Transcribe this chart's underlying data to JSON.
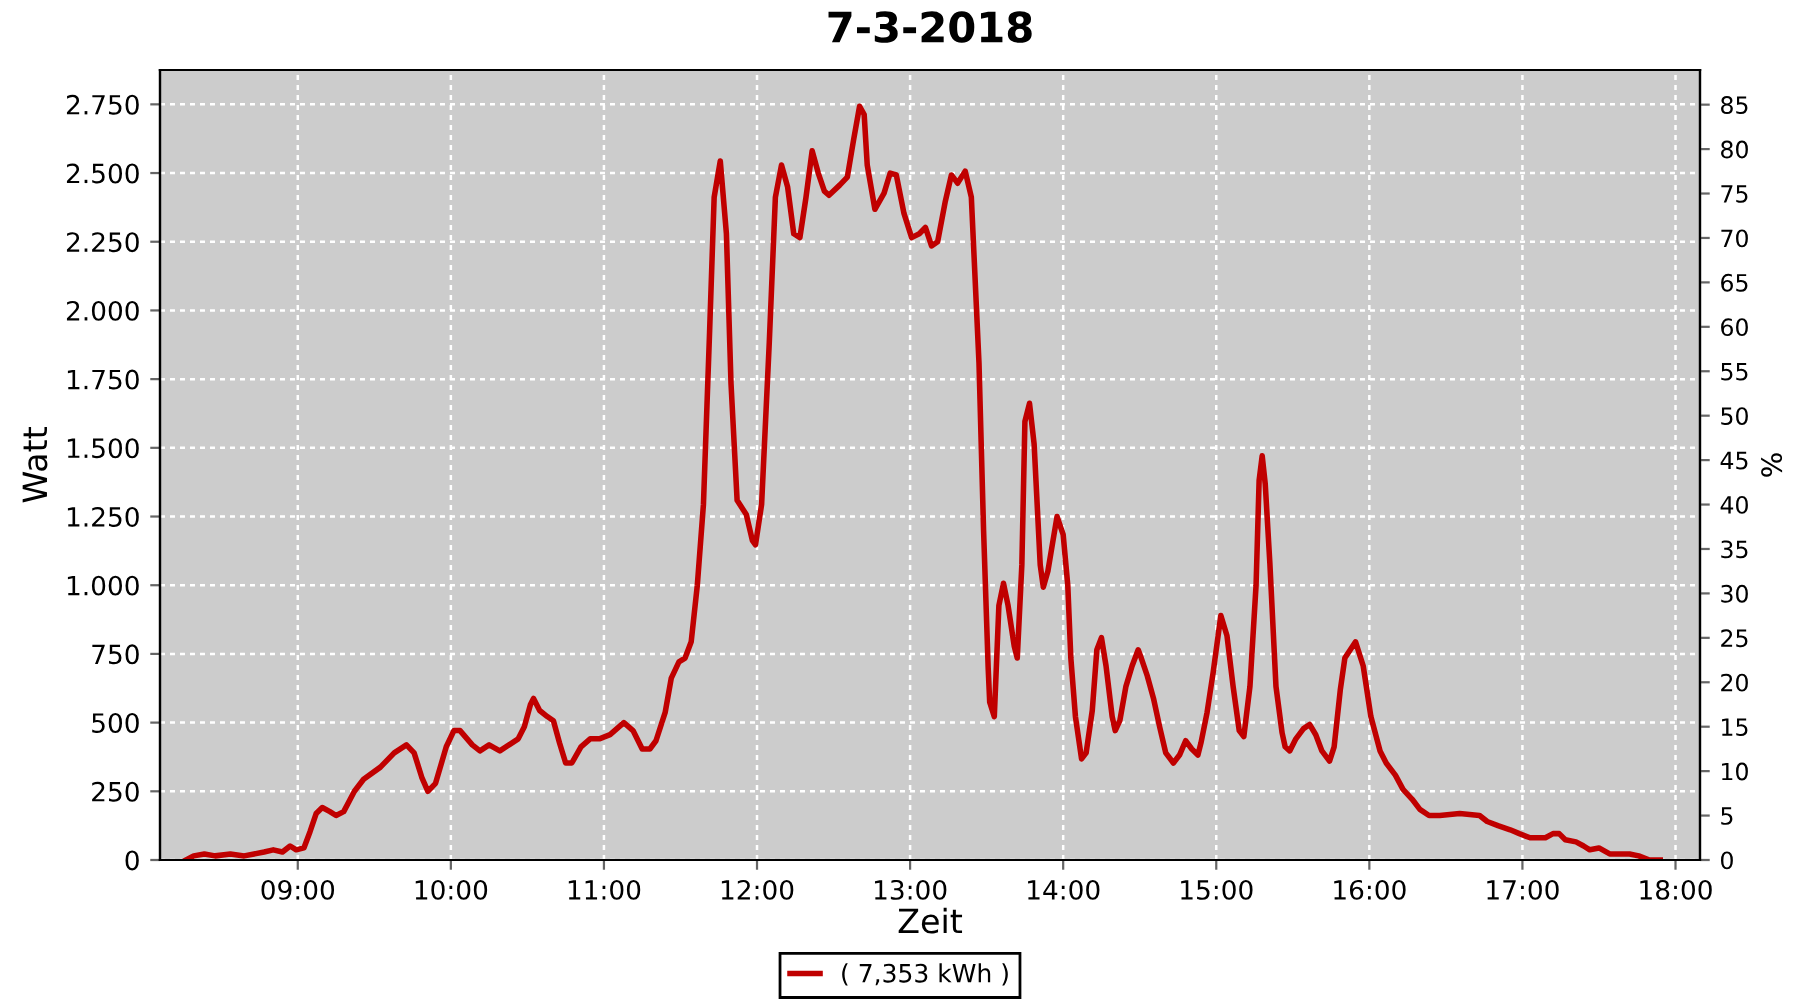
{
  "chart_data": {
    "type": "line",
    "title": "7-3-2018",
    "xlabel": "Zeit",
    "ylabel": "Watt",
    "y2label": "%",
    "x": [
      8.27,
      8.32,
      8.39,
      8.46,
      8.56,
      8.65,
      8.78,
      8.84,
      8.9,
      8.95,
      8.99,
      9.04,
      9.08,
      9.12,
      9.16,
      9.21,
      9.25,
      9.3,
      9.37,
      9.43,
      9.54,
      9.63,
      9.71,
      9.76,
      9.81,
      9.85,
      9.9,
      9.97,
      10.02,
      10.06,
      10.14,
      10.19,
      10.25,
      10.32,
      10.38,
      10.44,
      10.48,
      10.52,
      10.54,
      10.58,
      10.63,
      10.67,
      10.71,
      10.75,
      10.79,
      10.85,
      10.91,
      10.97,
      11.04,
      11.13,
      11.19,
      11.25,
      11.3,
      11.34,
      11.4,
      11.44,
      11.49,
      11.53,
      11.57,
      11.61,
      11.65,
      11.69,
      11.72,
      11.76,
      11.8,
      11.83,
      11.87,
      11.93,
      11.97,
      11.99,
      12.03,
      12.08,
      12.12,
      12.16,
      12.2,
      12.24,
      12.28,
      12.32,
      12.36,
      12.4,
      12.44,
      12.47,
      12.54,
      12.59,
      12.63,
      12.67,
      12.7,
      12.72,
      12.77,
      12.83,
      12.87,
      12.91,
      12.96,
      13.01,
      13.06,
      13.1,
      13.14,
      13.18,
      13.23,
      13.27,
      13.31,
      13.36,
      13.4,
      13.45,
      13.48,
      13.51,
      13.52,
      13.55,
      13.58,
      13.61,
      13.64,
      13.68,
      13.7,
      13.73,
      13.75,
      13.78,
      13.81,
      13.85,
      13.87,
      13.9,
      13.94,
      13.96,
      14.0,
      14.03,
      14.05,
      14.08,
      14.12,
      14.15,
      14.19,
      14.22,
      14.25,
      14.28,
      14.32,
      14.34,
      14.37,
      14.41,
      14.45,
      14.49,
      14.51,
      14.55,
      14.59,
      14.63,
      14.67,
      14.72,
      14.76,
      14.8,
      14.84,
      14.88,
      14.9,
      14.94,
      14.98,
      15.03,
      15.07,
      15.11,
      15.15,
      15.18,
      15.22,
      15.26,
      15.28,
      15.3,
      15.32,
      15.35,
      15.39,
      15.43,
      15.45,
      15.48,
      15.52,
      15.57,
      15.61,
      15.65,
      15.69,
      15.74,
      15.77,
      15.81,
      15.84,
      15.91,
      15.96,
      16.01,
      16.07,
      16.11,
      16.17,
      16.22,
      16.28,
      16.33,
      16.39,
      16.46,
      16.59,
      16.72,
      16.77,
      16.84,
      16.92,
      16.98,
      17.05,
      17.15,
      17.2,
      17.24,
      17.28,
      17.35,
      17.4,
      17.44,
      17.5,
      17.57,
      17.7,
      17.76,
      17.83,
      17.9
    ],
    "series": [
      {
        "name": "( 7,353 kWh )",
        "color": "#c00000",
        "values": [
          0,
          15,
          22,
          15,
          22,
          15,
          29,
          37,
          29,
          51,
          37,
          44,
          103,
          169,
          191,
          176,
          162,
          176,
          250,
          294,
          338,
          390,
          419,
          390,
          301,
          250,
          279,
          412,
          471,
          471,
          419,
          397,
          419,
          397,
          419,
          441,
          485,
          566,
          588,
          544,
          522,
          507,
          426,
          353,
          353,
          412,
          441,
          441,
          456,
          500,
          471,
          404,
          404,
          434,
          537,
          662,
          721,
          735,
          794,
          1000,
          1294,
          1919,
          2412,
          2544,
          2279,
          1735,
          1309,
          1257,
          1162,
          1147,
          1294,
          1882,
          2412,
          2529,
          2449,
          2279,
          2265,
          2412,
          2581,
          2500,
          2434,
          2419,
          2456,
          2485,
          2618,
          2743,
          2713,
          2529,
          2368,
          2427,
          2500,
          2493,
          2353,
          2265,
          2279,
          2302,
          2235,
          2250,
          2397,
          2493,
          2463,
          2507,
          2412,
          1809,
          1199,
          699,
          574,
          522,
          926,
          1007,
          926,
          779,
          735,
          1074,
          1596,
          1662,
          1515,
          1074,
          993,
          1051,
          1184,
          1250,
          1184,
          1000,
          735,
          522,
          368,
          390,
          544,
          765,
          809,
          706,
          522,
          471,
          507,
          632,
          706,
          765,
          735,
          669,
          588,
          485,
          390,
          353,
          382,
          434,
          404,
          382,
          426,
          537,
          684,
          890,
          816,
          632,
          471,
          449,
          632,
          1000,
          1382,
          1471,
          1368,
          1081,
          632,
          463,
          412,
          397,
          441,
          478,
          493,
          456,
          397,
          360,
          412,
          618,
          735,
          794,
          706,
          522,
          397,
          353,
          309,
          257,
          221,
          184,
          162,
          162,
          169,
          162,
          140,
          125,
          110,
          96,
          81,
          81,
          96,
          96,
          74,
          66,
          51,
          37,
          44,
          22,
          22,
          15,
          0,
          0
        ]
      }
    ],
    "xlim": [
      8.1,
      18.16
    ],
    "xticks": [
      {
        "value": 9,
        "label": "09:00"
      },
      {
        "value": 10,
        "label": "10:00"
      },
      {
        "value": 11,
        "label": "11:00"
      },
      {
        "value": 12,
        "label": "12:00"
      },
      {
        "value": 13,
        "label": "13:00"
      },
      {
        "value": 14,
        "label": "14:00"
      },
      {
        "value": 15,
        "label": "15:00"
      },
      {
        "value": 16,
        "label": "16:00"
      },
      {
        "value": 17,
        "label": "17:00"
      },
      {
        "value": 18,
        "label": "18:00"
      }
    ],
    "ylim": [
      0,
      2875
    ],
    "yticks": [
      0,
      250,
      500,
      750,
      {
        "value": 1000,
        "label": "1.000"
      },
      {
        "value": 1250,
        "label": "1.250"
      },
      {
        "value": 1500,
        "label": "1.500"
      },
      {
        "value": 1750,
        "label": "1.750"
      },
      {
        "value": 2000,
        "label": "2.000"
      },
      {
        "value": 2250,
        "label": "2.250"
      },
      {
        "value": 2500,
        "label": "2.500"
      },
      {
        "value": 2750,
        "label": "2.750"
      }
    ],
    "y2lim": [
      0,
      88.9
    ],
    "y2ticks": [
      0,
      5,
      10,
      15,
      20,
      25,
      30,
      35,
      40,
      45,
      50,
      55,
      60,
      65,
      70,
      75,
      80,
      85
    ],
    "grid": true,
    "legend": "bottom",
    "marker": "none",
    "line_style": "solid"
  }
}
